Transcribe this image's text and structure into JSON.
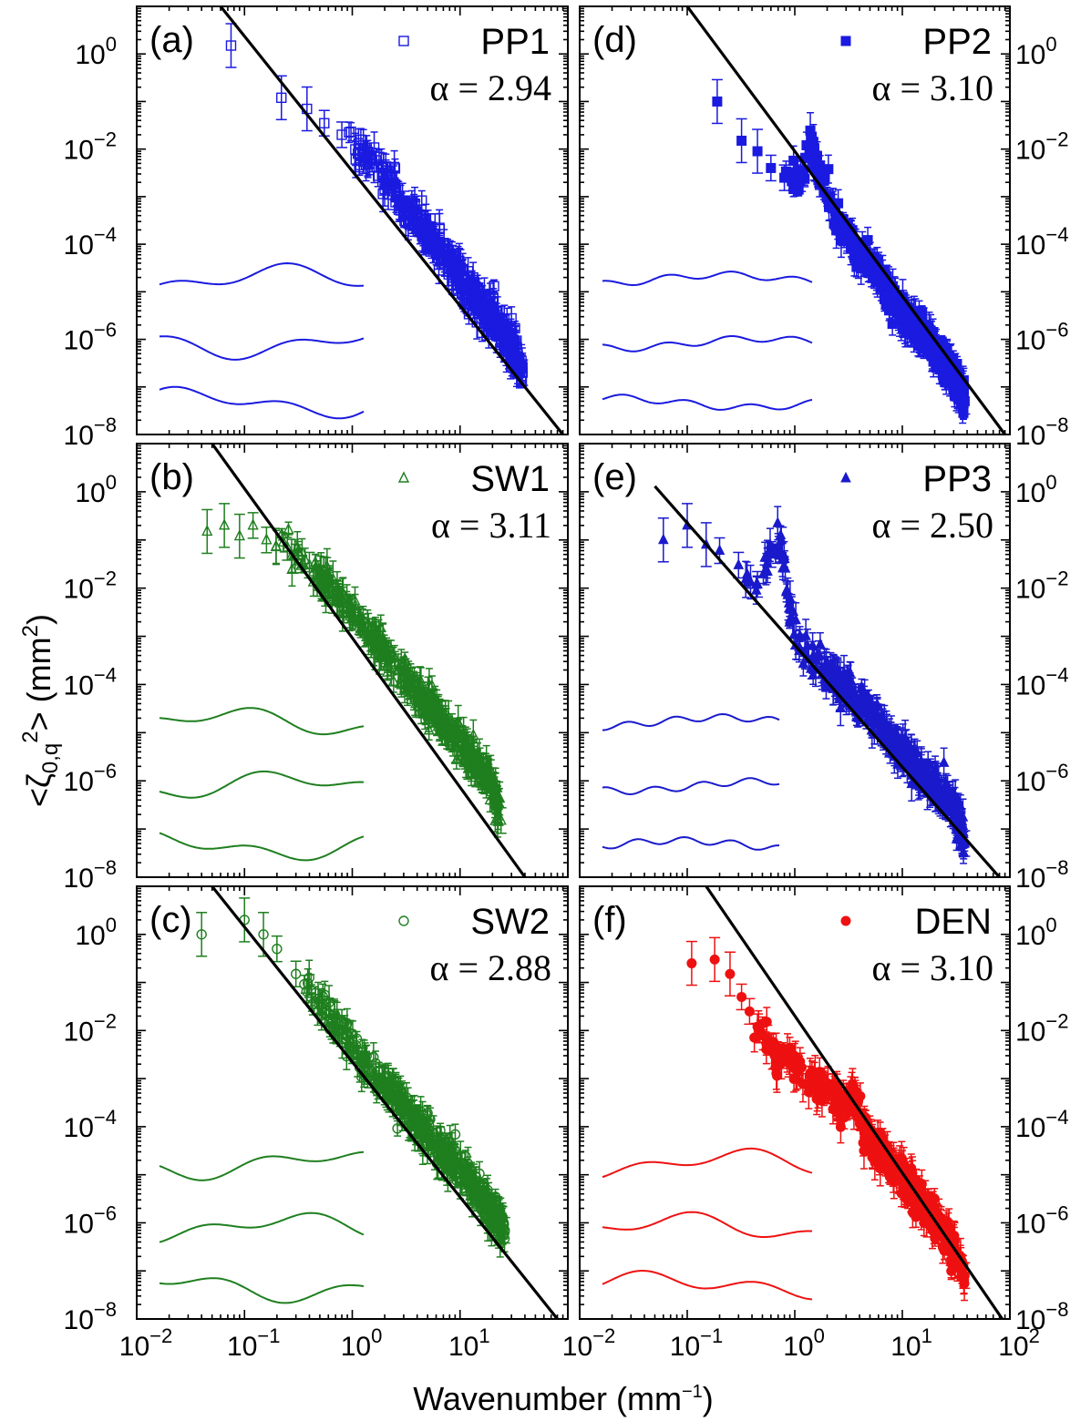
{
  "figure": {
    "x_axis_title": "Wavenumber (mm",
    "x_axis_title_exp": "−1",
    "x_axis_title_end": ")",
    "y_axis_title_main": "<ζ",
    "y_axis_title_sub": "0,q",
    "y_axis_title_sup": "2",
    "y_axis_title_end": "> (mm",
    "y_axis_title_sup2": "2",
    "y_axis_title_close": ")",
    "x_tick_base": "10",
    "x_tick_exponents": [
      "-2",
      "-1",
      "0",
      "1",
      "2"
    ],
    "y_tick_base": "10",
    "y_tick_exponents": [
      "0",
      "-2",
      "-4",
      "-6",
      "-8"
    ]
  },
  "chart_data": [
    {
      "panel": "(a)",
      "type": "scatter",
      "series_name": "PP1",
      "alpha_label": "α = 2.94",
      "alpha_value": 2.94,
      "color": "#1a1ae0",
      "marker": "square-open",
      "xscale": "log",
      "yscale": "log",
      "xlim": [
        0.01,
        100
      ],
      "ylim": [
        1e-08,
        10
      ],
      "points": [
        [
          0.075,
          1.5
        ],
        [
          0.22,
          0.12
        ],
        [
          0.38,
          0.07
        ],
        [
          0.55,
          0.035
        ],
        [
          0.8,
          0.02
        ],
        [
          1.3,
          0.008
        ],
        [
          2,
          0.002
        ],
        [
          3,
          0.0007
        ],
        [
          5,
          0.00015
        ],
        [
          8,
          4e-05
        ],
        [
          12,
          1.2e-05
        ],
        [
          20,
          3e-06
        ],
        [
          30,
          8e-07
        ],
        [
          38,
          2e-07
        ]
      ],
      "fit_line": {
        "x": [
          0.06,
          90
        ],
        "y": [
          10,
          1e-08
        ]
      },
      "inset_profiles": "3 surface height profiles"
    },
    {
      "panel": "(b)",
      "type": "scatter",
      "series_name": "SW1",
      "alpha_label": "α = 3.11",
      "alpha_value": 3.11,
      "color": "#1f7f1f",
      "marker": "triangle-open",
      "xscale": "log",
      "yscale": "log",
      "xlim": [
        0.01,
        100
      ],
      "ylim": [
        1e-08,
        10
      ],
      "points": [
        [
          0.045,
          0.15
        ],
        [
          0.065,
          0.2
        ],
        [
          0.09,
          0.12
        ],
        [
          0.12,
          0.2
        ],
        [
          0.16,
          0.1
        ],
        [
          0.25,
          0.07
        ],
        [
          0.4,
          0.03
        ],
        [
          0.7,
          0.008
        ],
        [
          1.2,
          0.002
        ],
        [
          2,
          0.0005
        ],
        [
          4,
          7e-05
        ],
        [
          7,
          1.5e-05
        ],
        [
          12,
          4e-06
        ],
        [
          20,
          8e-07
        ],
        [
          24,
          1.5e-07
        ]
      ],
      "fit_line": {
        "x": [
          0.05,
          40
        ],
        "y": [
          10,
          1e-08
        ]
      },
      "inset_profiles": "3 surface height profiles"
    },
    {
      "panel": "(c)",
      "type": "scatter",
      "series_name": "SW2",
      "alpha_label": "α = 2.88",
      "alpha_value": 2.88,
      "color": "#1f7f1f",
      "marker": "circle-open",
      "xscale": "log",
      "yscale": "log",
      "xlim": [
        0.01,
        100
      ],
      "ylim": [
        1e-08,
        10
      ],
      "points": [
        [
          0.04,
          1.0
        ],
        [
          0.1,
          2.0
        ],
        [
          0.15,
          1.0
        ],
        [
          0.2,
          0.5
        ],
        [
          0.3,
          0.15
        ],
        [
          0.5,
          0.04
        ],
        [
          0.8,
          0.01
        ],
        [
          1.3,
          0.002
        ],
        [
          2,
          0.0007
        ],
        [
          4,
          0.00012
        ],
        [
          7,
          3e-05
        ],
        [
          12,
          8e-06
        ],
        [
          20,
          1.5e-06
        ],
        [
          26,
          7e-07
        ]
      ],
      "fit_line": {
        "x": [
          0.05,
          80
        ],
        "y": [
          10,
          1e-08
        ]
      },
      "inset_profiles": "3 surface height profiles"
    },
    {
      "panel": "(d)",
      "type": "scatter",
      "series_name": "PP2",
      "alpha_label": "α = 3.10",
      "alpha_value": 3.1,
      "color": "#1a1ae0",
      "marker": "square-filled",
      "xscale": "log",
      "yscale": "log",
      "xlim": [
        0.01,
        100
      ],
      "ylim": [
        1e-08,
        10
      ],
      "points": [
        [
          0.19,
          0.1
        ],
        [
          0.32,
          0.015
        ],
        [
          0.45,
          0.009
        ],
        [
          0.6,
          0.004
        ],
        [
          0.8,
          0.0025
        ],
        [
          1.0,
          0.0025
        ],
        [
          1.2,
          0.003
        ],
        [
          1.4,
          0.012
        ],
        [
          1.7,
          0.003
        ],
        [
          2.2,
          0.0006
        ],
        [
          3.5,
          0.0001
        ],
        [
          6,
          2e-05
        ],
        [
          10,
          4e-06
        ],
        [
          18,
          8e-07
        ],
        [
          30,
          1.5e-07
        ],
        [
          38,
          5e-08
        ]
      ],
      "fit_line": {
        "x": [
          0.1,
          90
        ],
        "y": [
          10,
          1e-08
        ]
      },
      "inset_profiles": "3 surface height profiles"
    },
    {
      "panel": "(e)",
      "type": "scatter",
      "series_name": "PP3",
      "alpha_label": "α = 2.50",
      "alpha_value": 2.5,
      "color": "#1a1acc",
      "marker": "triangle-filled",
      "xscale": "log",
      "yscale": "log",
      "xlim": [
        0.01,
        100
      ],
      "ylim": [
        1e-08,
        10
      ],
      "points": [
        [
          0.06,
          0.1
        ],
        [
          0.1,
          0.2
        ],
        [
          0.15,
          0.08
        ],
        [
          0.2,
          0.06
        ],
        [
          0.3,
          0.03
        ],
        [
          0.45,
          0.012
        ],
        [
          0.6,
          0.05
        ],
        [
          0.75,
          0.1
        ],
        [
          0.9,
          0.004
        ],
        [
          1.1,
          0.0006
        ],
        [
          2,
          0.0002
        ],
        [
          4,
          4e-05
        ],
        [
          8,
          8e-06
        ],
        [
          15,
          1.5e-06
        ],
        [
          30,
          3e-07
        ],
        [
          38,
          5e-08
        ]
      ],
      "fit_line": {
        "x": [
          0.05,
          80
        ],
        "y": [
          1.3,
          1e-08
        ]
      },
      "inset_profiles": "3 surface height profiles"
    },
    {
      "panel": "(f)",
      "type": "scatter",
      "series_name": "DEN",
      "alpha_label": "α = 3.10",
      "alpha_value": 3.1,
      "color": "#ee1111",
      "marker": "circle-filled",
      "xscale": "log",
      "yscale": "log",
      "xlim": [
        0.01,
        100
      ],
      "ylim": [
        1e-08,
        10
      ],
      "points": [
        [
          0.11,
          0.25
        ],
        [
          0.18,
          0.3
        ],
        [
          0.25,
          0.15
        ],
        [
          0.32,
          0.05
        ],
        [
          0.38,
          0.025
        ],
        [
          0.45,
          0.012
        ],
        [
          0.55,
          0.007
        ],
        [
          0.65,
          0.003
        ],
        [
          0.9,
          0.002
        ],
        [
          1.5,
          0.0009
        ],
        [
          2.5,
          0.0003
        ],
        [
          3.5,
          0.0004
        ],
        [
          4.5,
          8e-05
        ],
        [
          7,
          2e-05
        ],
        [
          12,
          5e-06
        ],
        [
          20,
          1.2e-06
        ],
        [
          30,
          3e-07
        ],
        [
          38,
          8e-08
        ]
      ],
      "fit_line": {
        "x": [
          0.15,
          85
        ],
        "y": [
          10,
          1e-08
        ]
      },
      "inset_profiles": "3 surface height profiles"
    }
  ]
}
